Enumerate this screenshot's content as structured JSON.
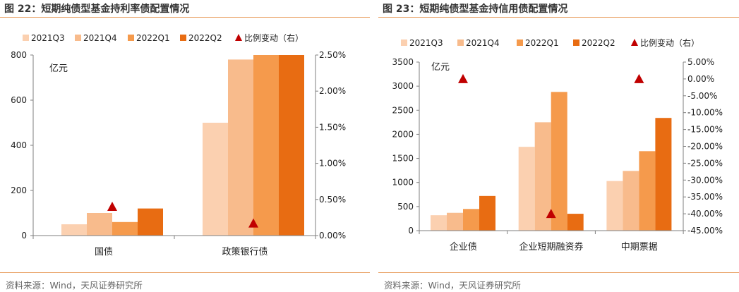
{
  "colors": {
    "series": [
      "#fbd0b0",
      "#f8bb8c",
      "#f59a4c",
      "#e86c12"
    ],
    "marker": "#c00000",
    "axis": "#7f7f7f",
    "rule": "#e9a164"
  },
  "panels": [
    {
      "title": "图 22：短期纯债型基金持利率债配置情况",
      "source": "资料来源：Wind，天风证券研究所"
    },
    {
      "title": "图 23：短期纯债型基金持信用债配置情况",
      "source": "资料来源：Wind，天风证券研究所"
    }
  ],
  "chart_data": [
    {
      "type": "bar",
      "unit_label": "亿元",
      "categories": [
        "国债",
        "政策银行债"
      ],
      "series": [
        {
          "name": "2021Q3",
          "values": [
            50,
            500
          ]
        },
        {
          "name": "2021Q4",
          "values": [
            100,
            780
          ]
        },
        {
          "name": "2022Q1",
          "values": [
            60,
            800
          ]
        },
        {
          "name": "2022Q2",
          "values": [
            120,
            800
          ]
        }
      ],
      "marker_series": {
        "name": "比例变动（右）",
        "values": [
          0.004,
          0.0017
        ]
      },
      "ylim": [
        0,
        800
      ],
      "yticks": [
        "0",
        "200",
        "400",
        "600",
        "800"
      ],
      "y2lim": [
        0,
        0.025
      ],
      "y2ticks": [
        "0.00%",
        "0.50%",
        "1.00%",
        "1.50%",
        "2.00%",
        "2.50%"
      ],
      "legend_placement": "top",
      "grid": false
    },
    {
      "type": "bar",
      "unit_label": "亿元",
      "categories": [
        "企业债",
        "企业短期融资券",
        "中期票据"
      ],
      "series": [
        {
          "name": "2021Q3",
          "values": [
            320,
            1740,
            1030
          ]
        },
        {
          "name": "2021Q4",
          "values": [
            370,
            2250,
            1240
          ]
        },
        {
          "name": "2022Q1",
          "values": [
            450,
            2880,
            1650
          ]
        },
        {
          "name": "2022Q2",
          "values": [
            720,
            350,
            2340
          ]
        }
      ],
      "marker_series": {
        "name": "比例变动（右）",
        "values": [
          0.0,
          -0.4,
          0.0
        ]
      },
      "ylim": [
        0,
        3500
      ],
      "yticks": [
        "0",
        "500",
        "1000",
        "1500",
        "2000",
        "2500",
        "3000",
        "3500"
      ],
      "y2lim": [
        -0.45,
        0.05
      ],
      "y2ticks": [
        "-45.00%",
        "-40.00%",
        "-35.00%",
        "-30.00%",
        "-25.00%",
        "-20.00%",
        "-15.00%",
        "-10.00%",
        "-5.00%",
        "0.00%",
        "5.00%"
      ],
      "legend_placement": "top",
      "grid": false
    }
  ]
}
